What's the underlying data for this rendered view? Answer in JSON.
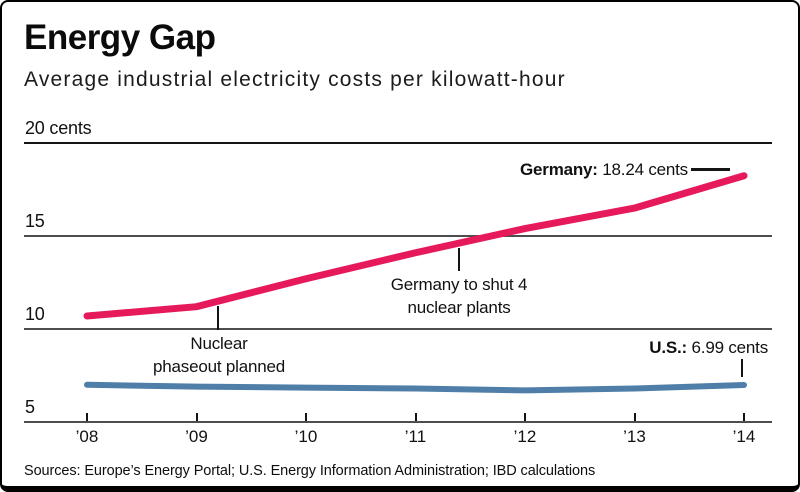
{
  "header": {
    "title": "Energy Gap",
    "subtitle": "Average industrial electricity costs per kilowatt-hour"
  },
  "footer": {
    "sources": "Sources: Europe’s Energy Portal; U.S. Energy Information Administration; IBD calculations"
  },
  "chart_data": {
    "type": "line",
    "title": "Energy Gap",
    "subtitle": "Average industrial electricity costs per kilowatt-hour",
    "unit": "cents per kilowatt-hour",
    "x": [
      2008,
      2009,
      2010,
      2011,
      2012,
      2013,
      2014
    ],
    "x_tick_labels": [
      "’08",
      "’09",
      "’10",
      "’11",
      "’12",
      "’13",
      "’14"
    ],
    "y_ticks": [
      {
        "value": 20,
        "label": "20 cents"
      },
      {
        "value": 15,
        "label": "15"
      },
      {
        "value": 10,
        "label": "10"
      },
      {
        "value": 5,
        "label": "5"
      }
    ],
    "ylim": [
      5,
      20
    ],
    "grid": true,
    "legend_position": "inline-labels",
    "series": [
      {
        "name": "Germany",
        "color": "#e61a5b",
        "values": [
          10.7,
          11.2,
          12.7,
          14.1,
          15.4,
          16.5,
          18.24
        ]
      },
      {
        "name": "U.S.",
        "color": "#4f7fa8",
        "values": [
          7.0,
          6.9,
          6.85,
          6.8,
          6.7,
          6.8,
          6.99
        ]
      }
    ],
    "series_labels": [
      {
        "name_bold": "Germany:",
        "value": " 18.24 cents"
      },
      {
        "name_bold": "U.S.:",
        "value": " 6.99 cents"
      }
    ],
    "annotations": [
      {
        "line1": "Nuclear",
        "line2": "phaseout planned",
        "x_year": 2009.2,
        "series": "Germany"
      },
      {
        "line1": "Germany to shut 4",
        "line2": "nuclear plants",
        "x_year": 2011.4,
        "series": "Germany"
      }
    ]
  }
}
